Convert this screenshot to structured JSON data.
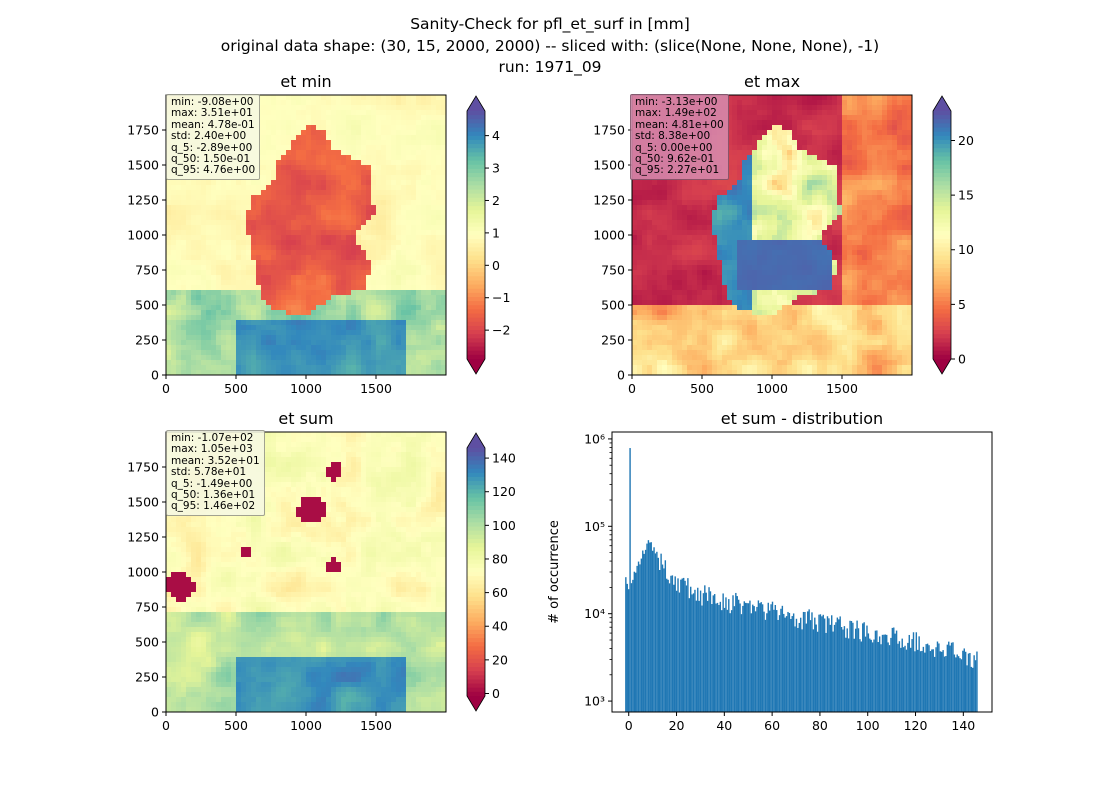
{
  "figure": {
    "title_line1": "Sanity-Check for pfl_et_surf in [mm]",
    "title_line2": "original data shape: (30, 15, 2000, 2000) -- sliced with: (slice(None, None, None), -1)",
    "title_line3": "run: 1971_09"
  },
  "colors": {
    "hist_bar": "#1f77b4",
    "spectral": [
      "#9e0142",
      "#d53e4f",
      "#f46d43",
      "#fdae61",
      "#fee08b",
      "#ffffbf",
      "#e6f598",
      "#abdda4",
      "#66c2a5",
      "#3288bd",
      "#5e4fa2"
    ]
  },
  "chart_data": [
    {
      "type": "heatmap",
      "title": "et min",
      "colormap": "Spectral",
      "x_ticks": [
        "0",
        "500",
        "1000",
        "1500"
      ],
      "y_ticks": [
        "0",
        "250",
        "500",
        "750",
        "1000",
        "1250",
        "1500",
        "1750"
      ],
      "xlim": [
        0,
        2000
      ],
      "ylim": [
        0,
        2000
      ],
      "colorbar": {
        "range": [
          -2.89,
          4.76
        ],
        "ticks": [
          "4",
          "3",
          "2",
          "1",
          "0",
          "−1",
          "−2"
        ],
        "tick_values": [
          4,
          3,
          2,
          1,
          0,
          -1,
          -2
        ],
        "extend": "both"
      },
      "stats": [
        "min: -9.08e+00",
        "max: 3.51e+01",
        "mean: 4.78e-01",
        "std: 2.40e+00",
        "q_5: -2.89e+00",
        "q_50: 1.50e-01",
        "q_95: 4.76e+00"
      ]
    },
    {
      "type": "heatmap",
      "title": "et max",
      "colormap": "Spectral",
      "x_ticks": [
        "0",
        "500",
        "1000",
        "1500"
      ],
      "y_ticks": [
        "0",
        "250",
        "500",
        "750",
        "1000",
        "1250",
        "1500",
        "1750"
      ],
      "xlim": [
        0,
        2000
      ],
      "ylim": [
        0,
        2000
      ],
      "colorbar": {
        "range": [
          0.0,
          22.7
        ],
        "ticks": [
          "20",
          "15",
          "10",
          "5",
          "0"
        ],
        "tick_values": [
          20,
          15,
          10,
          5,
          0
        ],
        "extend": "both"
      },
      "stats": [
        "min: -3.13e+00",
        "max: 1.49e+02",
        "mean: 4.81e+00",
        "std: 8.38e+00",
        "q_5: 0.00e+00",
        "q_50: 9.62e-01",
        "q_95: 2.27e+01"
      ]
    },
    {
      "type": "heatmap",
      "title": "et sum",
      "colormap": "Spectral",
      "x_ticks": [
        "0",
        "500",
        "1000",
        "1500"
      ],
      "y_ticks": [
        "0",
        "250",
        "500",
        "750",
        "1000",
        "1250",
        "1500",
        "1750"
      ],
      "xlim": [
        0,
        2000
      ],
      "ylim": [
        0,
        2000
      ],
      "colorbar": {
        "range": [
          -1.49,
          146
        ],
        "ticks": [
          "140",
          "120",
          "100",
          "80",
          "60",
          "40",
          "20",
          "0"
        ],
        "tick_values": [
          140,
          120,
          100,
          80,
          60,
          40,
          20,
          0
        ],
        "extend": "both"
      },
      "stats": [
        "min: -1.07e+02",
        "max: 1.05e+03",
        "mean: 3.52e+01",
        "std: 5.78e+01",
        "q_5: -1.49e+00",
        "q_50: 1.36e+01",
        "q_95: 1.46e+02"
      ]
    },
    {
      "type": "bar",
      "title": "et sum - distribution",
      "ylabel": "# of occurrence",
      "yscale": "log",
      "ylim": [
        750,
        1200000
      ],
      "xlim": [
        -7,
        152
      ],
      "x_ticks": [
        "0",
        "20",
        "40",
        "60",
        "80",
        "100",
        "120",
        "140"
      ],
      "x_tick_values": [
        0,
        20,
        40,
        60,
        80,
        100,
        120,
        140
      ],
      "y_ticks": [
        "10³",
        "10⁴",
        "10⁵",
        "10⁶"
      ],
      "y_tick_values": [
        1000,
        10000,
        100000,
        1000000
      ],
      "bins": [
        -1.5,
        146
      ],
      "profile": [
        [
          -1.5,
          27000
        ],
        [
          0,
          20000
        ],
        [
          0.2,
          800000
        ],
        [
          0.6,
          23000
        ],
        [
          3,
          30000
        ],
        [
          6,
          50000
        ],
        [
          8,
          68000
        ],
        [
          10,
          58000
        ],
        [
          14,
          36000
        ],
        [
          20,
          24000
        ],
        [
          30,
          17000
        ],
        [
          40,
          14500
        ],
        [
          50,
          12500
        ],
        [
          60,
          10800
        ],
        [
          70,
          9500
        ],
        [
          80,
          8200
        ],
        [
          90,
          7200
        ],
        [
          100,
          6400
        ],
        [
          110,
          5600
        ],
        [
          120,
          4900
        ],
        [
          130,
          4200
        ],
        [
          140,
          3400
        ],
        [
          146,
          3000
        ]
      ]
    }
  ]
}
